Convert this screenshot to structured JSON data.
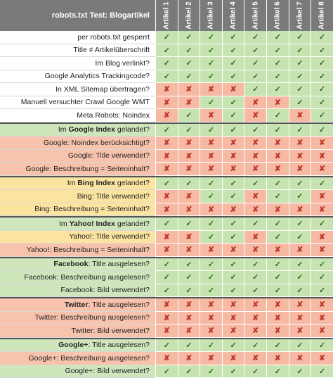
{
  "header": {
    "title": "robots.txt Test: Blogartikel",
    "columns": [
      "Artikel 1",
      "Artikel 2",
      "Artikel 3",
      "Artikel 4",
      "Artikel 5",
      "Artikel 6",
      "Artikel 7",
      "Artikel 8"
    ]
  },
  "symbols": {
    "ok": "✓",
    "no": "✘"
  },
  "colors": {
    "header_bg": "#7a7a7a",
    "ok_bg": "#c8e3b2",
    "no_bg": "#f6b9a4",
    "label_green": "#cfe6bc",
    "label_orange": "#f8c3ad",
    "label_yellow": "#fbe3a0"
  },
  "rows": [
    {
      "bold": "",
      "label": "per robots.txt gesperrt",
      "tone": "white",
      "cells": [
        1,
        1,
        1,
        1,
        1,
        1,
        1,
        1
      ]
    },
    {
      "bold": "",
      "label": "Title ≠ Artikelüberschrift",
      "tone": "white",
      "cells": [
        1,
        1,
        1,
        1,
        1,
        1,
        1,
        1
      ]
    },
    {
      "bold": "",
      "label": "Im Blog verlinkt?",
      "tone": "white",
      "cells": [
        1,
        1,
        1,
        1,
        1,
        1,
        1,
        1
      ]
    },
    {
      "bold": "",
      "label": "Google Analytics Trackingcode?",
      "tone": "white",
      "cells": [
        1,
        1,
        1,
        1,
        1,
        1,
        1,
        1
      ]
    },
    {
      "bold": "",
      "label": "In XML Sitemap übertragen?",
      "tone": "white",
      "cells": [
        0,
        0,
        0,
        0,
        1,
        1,
        1,
        1
      ]
    },
    {
      "bold": "",
      "label": "Manuell versuchter Crawl Google WMT",
      "tone": "white",
      "cells": [
        0,
        0,
        1,
        1,
        0,
        0,
        1,
        1
      ]
    },
    {
      "bold": "",
      "label": "Meta Robots: Noindex",
      "tone": "white",
      "cells": [
        0,
        1,
        0,
        1,
        0,
        1,
        0,
        1
      ]
    },
    {
      "bold": "",
      "label": "Im Google Index gelandet?",
      "boldWord": "Google Index",
      "pre": "Im ",
      "post": " gelandet?",
      "tone": "green",
      "cells": [
        1,
        1,
        1,
        1,
        1,
        1,
        1,
        1
      ],
      "sepBefore": true
    },
    {
      "bold": "",
      "label": "Google: Noindex berücksichtigt?",
      "tone": "orange",
      "cells": [
        0,
        0,
        0,
        0,
        0,
        0,
        0,
        0
      ]
    },
    {
      "bold": "",
      "label": "Google: Title verwendet?",
      "tone": "orange",
      "cells": [
        0,
        0,
        0,
        0,
        0,
        0,
        0,
        0
      ]
    },
    {
      "bold": "",
      "label": "Google: Beschreibung = Seiteninhalt?",
      "tone": "orange",
      "cells": [
        0,
        0,
        0,
        0,
        0,
        0,
        0,
        0
      ]
    },
    {
      "bold": "",
      "label": "Im Bing Index gelandet?",
      "boldWord": "Bing Index",
      "pre": "Im ",
      "post": " gelandet?",
      "tone": "yellow",
      "cells": [
        1,
        1,
        1,
        1,
        1,
        1,
        1,
        1
      ],
      "sepBefore": true
    },
    {
      "bold": "",
      "label": "Bing: Title verwendet?",
      "tone": "yellow",
      "cells": [
        0,
        0,
        1,
        1,
        0,
        1,
        1,
        0
      ]
    },
    {
      "bold": "",
      "label": "Bing: Beschreibung = Seiteninhalt?",
      "tone": "yellow",
      "cells": [
        0,
        0,
        0,
        0,
        0,
        0,
        0,
        0
      ]
    },
    {
      "bold": "",
      "label": "Im Yahoo! Index gelandet?",
      "boldWord": "Yahoo! Index",
      "pre": "Im ",
      "post": " gelandet?",
      "tone": "green",
      "cells": [
        1,
        1,
        1,
        1,
        1,
        1,
        1,
        1
      ],
      "sepBefore": true
    },
    {
      "bold": "",
      "label": "Yahoo!: Title verwendet?",
      "tone": "yellow",
      "cells": [
        0,
        0,
        1,
        1,
        0,
        1,
        1,
        0
      ]
    },
    {
      "bold": "",
      "label": "Yahoo!: Beschreibung = Seiteninhalt?",
      "tone": "orange",
      "cells": [
        0,
        0,
        0,
        0,
        0,
        0,
        0,
        0
      ]
    },
    {
      "bold": "",
      "label": "Facebook: Title ausgelesen?",
      "boldWord": "Facebook",
      "pre": "",
      "post": ": Title ausgelesen?",
      "tone": "green",
      "cells": [
        1,
        1,
        1,
        1,
        1,
        1,
        1,
        1
      ],
      "sepBefore": true
    },
    {
      "bold": "",
      "label": "Facebook: Beschreibung ausgelesen?",
      "tone": "green",
      "cells": [
        1,
        1,
        1,
        1,
        1,
        1,
        1,
        1
      ]
    },
    {
      "bold": "",
      "label": "Facebook: Bild verwendet?",
      "tone": "green",
      "cells": [
        1,
        1,
        1,
        1,
        1,
        1,
        1,
        1
      ]
    },
    {
      "bold": "",
      "label": "Twitter: Title ausgelesen?",
      "boldWord": "Twitter",
      "pre": "",
      "post": ": Title ausgelesen?",
      "tone": "orange",
      "cells": [
        0,
        0,
        0,
        0,
        0,
        0,
        0,
        0
      ],
      "sepBefore": true
    },
    {
      "bold": "",
      "label": "Twitter: Beschreibung ausgelesen?",
      "tone": "orange",
      "cells": [
        0,
        0,
        0,
        0,
        0,
        0,
        0,
        0
      ]
    },
    {
      "bold": "",
      "label": "Twitter: Bild verwendet?",
      "tone": "orange",
      "cells": [
        0,
        0,
        0,
        0,
        0,
        0,
        0,
        0
      ]
    },
    {
      "bold": "",
      "label": "Google+: Title ausgelesen?",
      "boldWord": "Google+",
      "pre": "",
      "post": ": Title ausgelesen?",
      "tone": "green",
      "cells": [
        1,
        1,
        1,
        1,
        1,
        1,
        1,
        1
      ],
      "sepBefore": true
    },
    {
      "bold": "",
      "label": "Google+: Beschreibung ausgelesen?",
      "tone": "orange",
      "cells": [
        0,
        0,
        0,
        0,
        0,
        0,
        0,
        0
      ]
    },
    {
      "bold": "",
      "label": "Google+: Bild verwendet?",
      "tone": "green",
      "cells": [
        1,
        1,
        1,
        1,
        1,
        1,
        1,
        1
      ]
    }
  ]
}
